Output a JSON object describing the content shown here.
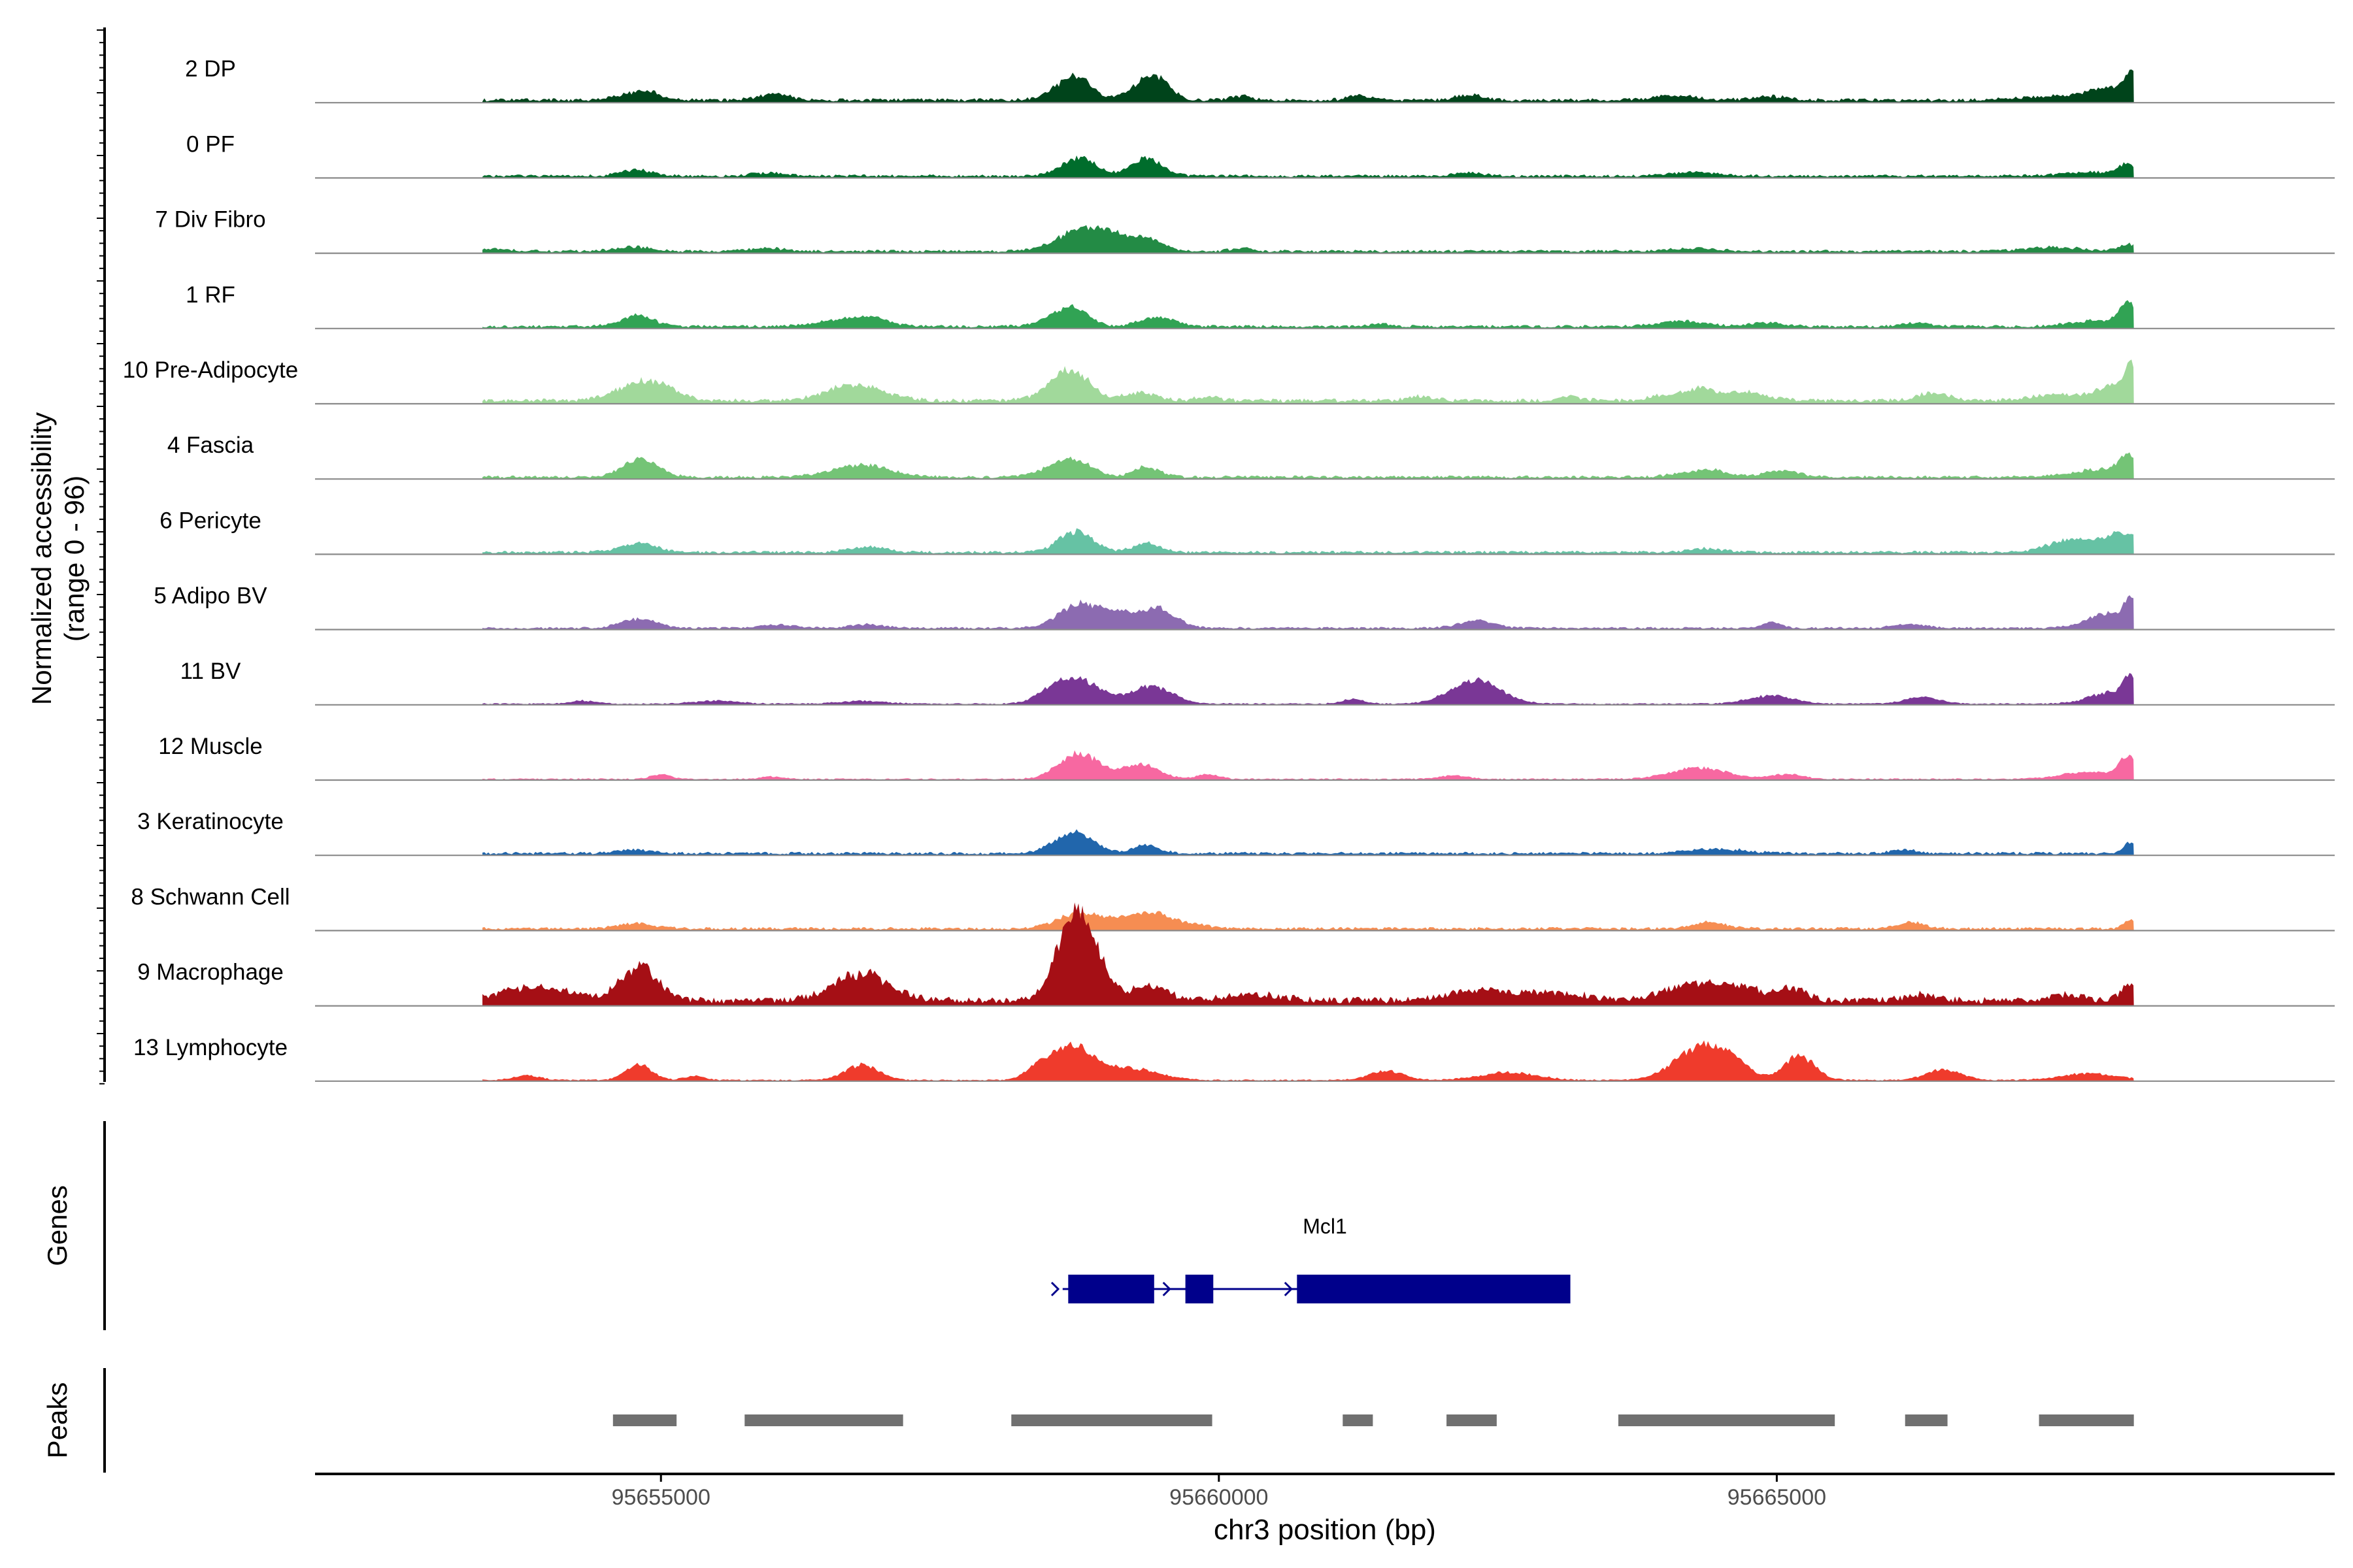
{
  "chart_data": {
    "type": "area",
    "title": "",
    "ylabel_line1": "Normalized accessibility",
    "ylabel_line2": "(range 0 - 96)",
    "ylim": [
      0,
      96
    ],
    "xlabel": "chr3 position (bp)",
    "xlim": [
      95651900,
      95670000
    ],
    "x_ticks": [
      95655000,
      95660000,
      95665000
    ],
    "x_tick_labels": [
      "95655000",
      "95660000",
      "95665000"
    ],
    "genes_label": "Genes",
    "peaks_label": "Peaks",
    "gene": {
      "name": "Mcl1",
      "start": 95658600,
      "end": 95663100,
      "color": "#00008B",
      "exons": [
        [
          95658650,
          95659420
        ],
        [
          95659700,
          95659950
        ],
        [
          95660700,
          95663150
        ]
      ]
    },
    "peaks": [
      [
        95654570,
        95655140
      ],
      [
        95655750,
        95657170
      ],
      [
        95658140,
        95659940
      ],
      [
        95661110,
        95661380
      ],
      [
        95662040,
        95662490
      ],
      [
        95663580,
        95665520
      ],
      [
        95666150,
        95666530
      ],
      [
        95667350,
        95668200
      ]
    ],
    "peak_color": "#707070",
    "signal_end": 95668200,
    "tracks": [
      {
        "name": "2 DP",
        "color": "#00441B",
        "baseline": 0.5,
        "peaks": [
          [
            95654780,
            160,
            1.0
          ],
          [
            95654920,
            80,
            0.4
          ],
          [
            95655950,
            120,
            0.6
          ],
          [
            95656100,
            80,
            0.5
          ],
          [
            95658750,
            130,
            2.2
          ],
          [
            95658600,
            150,
            1.4
          ],
          [
            95659350,
            140,
            2.5
          ],
          [
            95659500,
            100,
            1.5
          ],
          [
            95660200,
            90,
            0.5
          ],
          [
            95661250,
            100,
            0.6
          ],
          [
            95662250,
            120,
            0.7
          ],
          [
            95664100,
            200,
            0.6
          ],
          [
            95664950,
            160,
            0.5
          ],
          [
            95667500,
            300,
            0.5
          ],
          [
            95668000,
            200,
            1.6
          ],
          [
            95668180,
            60,
            2.8
          ]
        ]
      },
      {
        "name": "0 PF",
        "color": "#006D2C",
        "baseline": 0.4,
        "peaks": [
          [
            95654780,
            140,
            0.8
          ],
          [
            95655970,
            150,
            0.4
          ],
          [
            95658740,
            150,
            2.4
          ],
          [
            95659350,
            140,
            2.3
          ],
          [
            95662230,
            140,
            0.4
          ],
          [
            95664250,
            200,
            0.5
          ],
          [
            95667800,
            250,
            0.5
          ],
          [
            95668150,
            80,
            1.5
          ]
        ]
      },
      {
        "name": "7 Div Fibro",
        "color": "#238B45",
        "baseline": 0.4,
        "peaks": [
          [
            95653500,
            150,
            0.3
          ],
          [
            95654750,
            160,
            0.6
          ],
          [
            95655950,
            150,
            0.4
          ],
          [
            95658750,
            200,
            2.7
          ],
          [
            95659050,
            150,
            1.6
          ],
          [
            95659350,
            140,
            1.6
          ],
          [
            95660200,
            90,
            0.4
          ],
          [
            95664250,
            200,
            0.4
          ],
          [
            95667500,
            250,
            0.5
          ],
          [
            95668150,
            80,
            0.9
          ]
        ]
      },
      {
        "name": "1 RF",
        "color": "#31A354",
        "baseline": 0.4,
        "peaks": [
          [
            95654780,
            150,
            1.4
          ],
          [
            95656700,
            250,
            1.0
          ],
          [
            95656900,
            120,
            0.6
          ],
          [
            95658700,
            140,
            2.2
          ],
          [
            95658500,
            150,
            0.8
          ],
          [
            95659450,
            150,
            1.3
          ],
          [
            95661450,
            80,
            0.4
          ],
          [
            95664150,
            200,
            0.7
          ],
          [
            95664900,
            160,
            0.5
          ],
          [
            95666250,
            120,
            0.5
          ],
          [
            95667900,
            250,
            0.8
          ],
          [
            95668150,
            80,
            2.8
          ]
        ]
      },
      {
        "name": "10 Pre-Adipocyte",
        "color": "#A1D99B",
        "baseline": 0.6,
        "peaks": [
          [
            95654800,
            200,
            2.2
          ],
          [
            95655050,
            150,
            1.0
          ],
          [
            95656750,
            250,
            2.2
          ],
          [
            95658700,
            150,
            3.6
          ],
          [
            95658500,
            150,
            1.2
          ],
          [
            95659300,
            150,
            1.0
          ],
          [
            95659900,
            100,
            0.5
          ],
          [
            95661800,
            120,
            0.5
          ],
          [
            95663150,
            100,
            0.6
          ],
          [
            95664000,
            150,
            0.7
          ],
          [
            95664300,
            120,
            1.5
          ],
          [
            95664700,
            200,
            1.1
          ],
          [
            95666400,
            140,
            1.0
          ],
          [
            95667500,
            200,
            0.8
          ],
          [
            95668000,
            150,
            1.9
          ],
          [
            95668180,
            60,
            4.0
          ]
        ]
      },
      {
        "name": "4 Fascia",
        "color": "#74C476",
        "baseline": 0.4,
        "peaks": [
          [
            95654820,
            150,
            2.5
          ],
          [
            95656800,
            250,
            1.6
          ],
          [
            95658720,
            150,
            2.1
          ],
          [
            95658500,
            150,
            0.9
          ],
          [
            95659350,
            120,
            1.3
          ],
          [
            95664350,
            200,
            1.0
          ],
          [
            95665050,
            150,
            0.8
          ],
          [
            95667900,
            250,
            1.0
          ],
          [
            95668150,
            80,
            2.5
          ]
        ]
      },
      {
        "name": "6 Pericyte",
        "color": "#66C2A4",
        "baseline": 0.4,
        "peaks": [
          [
            95654800,
            160,
            1.2
          ],
          [
            95656850,
            160,
            0.7
          ],
          [
            95658720,
            150,
            2.8
          ],
          [
            95659350,
            120,
            1.2
          ],
          [
            95664350,
            150,
            0.5
          ],
          [
            95667650,
            200,
            1.8
          ],
          [
            95668100,
            150,
            2.6
          ]
        ]
      },
      {
        "name": "5 Adipo BV",
        "color": "#8C6BB1",
        "baseline": 0.3,
        "peaks": [
          [
            95654800,
            160,
            1.2
          ],
          [
            95656050,
            160,
            0.4
          ],
          [
            95656850,
            140,
            0.5
          ],
          [
            95658750,
            180,
            3.2
          ],
          [
            95659100,
            150,
            1.6
          ],
          [
            95659450,
            160,
            2.6
          ],
          [
            95662300,
            150,
            1.0
          ],
          [
            95664950,
            80,
            0.8
          ],
          [
            95666200,
            150,
            0.5
          ],
          [
            95668000,
            200,
            2.0
          ],
          [
            95668180,
            60,
            3.0
          ]
        ]
      },
      {
        "name": "11 BV",
        "color": "#7A3796",
        "baseline": 0.2,
        "peaks": [
          [
            95654300,
            120,
            0.4
          ],
          [
            95655500,
            200,
            0.4
          ],
          [
            95656800,
            200,
            0.4
          ],
          [
            95658750,
            200,
            3.0
          ],
          [
            95658500,
            140,
            1.2
          ],
          [
            95659400,
            180,
            2.4
          ],
          [
            95661200,
            100,
            0.6
          ],
          [
            95662300,
            220,
            3.2
          ],
          [
            95664950,
            200,
            1.1
          ],
          [
            95666300,
            150,
            0.9
          ],
          [
            95668000,
            200,
            1.5
          ],
          [
            95668170,
            60,
            3.2
          ]
        ]
      },
      {
        "name": "12 Muscle",
        "color": "#F768A1",
        "baseline": 0.2,
        "peaks": [
          [
            95655000,
            90,
            0.6
          ],
          [
            95656000,
            100,
            0.3
          ],
          [
            95658750,
            180,
            3.4
          ],
          [
            95659300,
            160,
            2.0
          ],
          [
            95659900,
            100,
            0.6
          ],
          [
            95662100,
            120,
            0.5
          ],
          [
            95664300,
            250,
            1.5
          ],
          [
            95665100,
            150,
            0.6
          ],
          [
            95667800,
            250,
            0.9
          ],
          [
            95668150,
            80,
            2.8
          ]
        ]
      },
      {
        "name": "3 Keratinocyte",
        "color": "#2166AC",
        "baseline": 0.4,
        "peaks": [
          [
            95654750,
            140,
            0.5
          ],
          [
            95658750,
            150,
            2.5
          ],
          [
            95659350,
            120,
            1.0
          ],
          [
            95658550,
            150,
            0.8
          ],
          [
            95664450,
            250,
            0.6
          ],
          [
            95666150,
            120,
            0.4
          ],
          [
            95668170,
            60,
            1.5
          ]
        ]
      },
      {
        "name": "8 Schwann Cell",
        "color": "#F68D52",
        "baseline": 0.4,
        "peaks": [
          [
            95654780,
            160,
            0.7
          ],
          [
            95658700,
            180,
            1.7
          ],
          [
            95659050,
            200,
            1.1
          ],
          [
            95659400,
            160,
            1.9
          ],
          [
            95659750,
            140,
            0.6
          ],
          [
            95664400,
            150,
            0.8
          ],
          [
            95666200,
            120,
            0.8
          ],
          [
            95668170,
            60,
            1.2
          ]
        ]
      },
      {
        "name": "9 Macrophage",
        "color": "#A50F15",
        "baseline": 1.0,
        "peaks": [
          [
            95653700,
            250,
            1.0
          ],
          [
            95654000,
            250,
            1.2
          ],
          [
            95654800,
            160,
            4.6
          ],
          [
            95656800,
            250,
            3.5
          ],
          [
            95658700,
            160,
            8.0
          ],
          [
            95658800,
            180,
            4.5
          ],
          [
            95659400,
            150,
            2.0
          ],
          [
            95660300,
            250,
            0.8
          ],
          [
            95662300,
            250,
            1.4
          ],
          [
            95663000,
            300,
            1.0
          ],
          [
            95664250,
            250,
            2.2
          ],
          [
            95664700,
            200,
            1.6
          ],
          [
            95665150,
            120,
            1.5
          ],
          [
            95666300,
            150,
            0.8
          ],
          [
            95667600,
            150,
            0.7
          ],
          [
            95668150,
            80,
            1.8
          ]
        ]
      },
      {
        "name": "13 Lymphocyte",
        "color": "#EF3B2C",
        "baseline": 0.2,
        "peaks": [
          [
            95653800,
            120,
            0.6
          ],
          [
            95654800,
            120,
            2.0
          ],
          [
            95655300,
            90,
            0.5
          ],
          [
            95656800,
            150,
            2.0
          ],
          [
            95658700,
            180,
            4.2
          ],
          [
            95658400,
            120,
            1.8
          ],
          [
            95659200,
            250,
            1.6
          ],
          [
            95661500,
            150,
            1.2
          ],
          [
            95662600,
            250,
            1.0
          ],
          [
            95664300,
            220,
            4.2
          ],
          [
            95664600,
            150,
            2.0
          ],
          [
            95665200,
            140,
            3.2
          ],
          [
            95666500,
            160,
            1.4
          ],
          [
            95667800,
            250,
            0.9
          ]
        ]
      }
    ]
  }
}
